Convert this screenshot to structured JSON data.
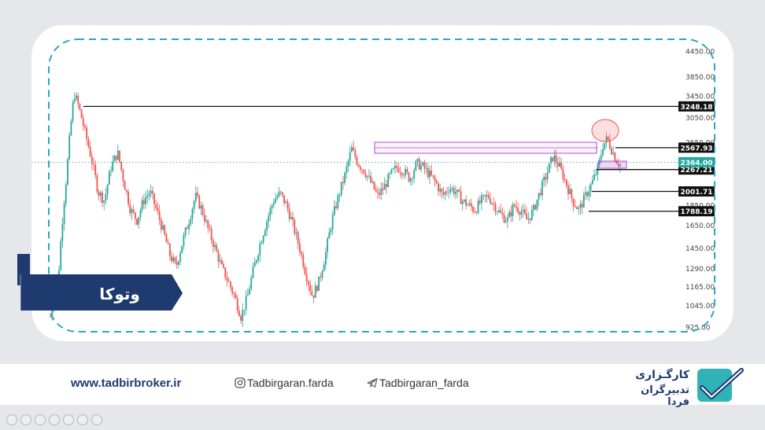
{
  "symbol": "وتوکا",
  "footer": {
    "website": "www.tadbirbroker.ir",
    "instagram": "Tadbirgaran.farda",
    "telegram": "Tadbirgaran_farda",
    "brand_line1": "کارگـزاری",
    "brand_line2": "تدبیرگران فردا"
  },
  "colors": {
    "up": "#26a69a",
    "down": "#ef5350",
    "brand_navy": "#1f3a6e",
    "dash_border": "#2aa7c1",
    "zone": "#b04fc9"
  },
  "chart_data": {
    "type": "candlestick",
    "y_ticks": [
      "4450.00",
      "3850.00",
      "3450.00",
      "3050.00",
      "2650.00",
      "2250.00",
      "1850.00",
      "1650.00",
      "1450.00",
      "1290.00",
      "1165.00",
      "1045.00",
      "925.00"
    ],
    "levels": [
      {
        "label": "3248.18",
        "value": 3248.18
      },
      {
        "label": "2567.93",
        "value": 2567.93
      },
      {
        "label": "2267.21",
        "value": 2267.21
      },
      {
        "label": "2001.71",
        "value": 2001.71
      },
      {
        "label": "1788.19",
        "value": 1788.19
      }
    ],
    "current_price": {
      "label": "2364.00",
      "value": 2364.0
    },
    "trend": [
      [
        0,
        980
      ],
      [
        8,
        1300
      ],
      [
        15,
        2200
      ],
      [
        22,
        3500
      ],
      [
        26,
        3250
      ],
      [
        32,
        2800
      ],
      [
        38,
        2400
      ],
      [
        44,
        2000
      ],
      [
        50,
        1900
      ],
      [
        56,
        2300
      ],
      [
        62,
        2500
      ],
      [
        68,
        2100
      ],
      [
        74,
        1800
      ],
      [
        80,
        1700
      ],
      [
        86,
        1900
      ],
      [
        92,
        2000
      ],
      [
        98,
        1800
      ],
      [
        104,
        1600
      ],
      [
        110,
        1400
      ],
      [
        116,
        1300
      ],
      [
        122,
        1500
      ],
      [
        128,
        1700
      ],
      [
        134,
        1950
      ],
      [
        140,
        1800
      ],
      [
        146,
        1600
      ],
      [
        152,
        1450
      ],
      [
        158,
        1300
      ],
      [
        164,
        1200
      ],
      [
        170,
        1100
      ],
      [
        176,
        980
      ],
      [
        182,
        1100
      ],
      [
        188,
        1300
      ],
      [
        194,
        1500
      ],
      [
        200,
        1700
      ],
      [
        206,
        1900
      ],
      [
        212,
        1980
      ],
      [
        218,
        1850
      ],
      [
        224,
        1650
      ],
      [
        230,
        1450
      ],
      [
        236,
        1250
      ],
      [
        242,
        1100
      ],
      [
        248,
        1200
      ],
      [
        254,
        1400
      ],
      [
        260,
        1700
      ],
      [
        266,
        1950
      ],
      [
        272,
        2200
      ],
      [
        278,
        2550
      ],
      [
        284,
        2350
      ],
      [
        290,
        2250
      ],
      [
        296,
        2100
      ],
      [
        302,
        1950
      ],
      [
        308,
        2050
      ],
      [
        314,
        2200
      ],
      [
        320,
        2300
      ],
      [
        326,
        2250
      ],
      [
        332,
        2150
      ],
      [
        338,
        2350
      ],
      [
        344,
        2300
      ],
      [
        350,
        2200
      ],
      [
        356,
        2100
      ],
      [
        362,
        1950
      ],
      [
        368,
        2050
      ],
      [
        374,
        2000
      ],
      [
        380,
        1900
      ],
      [
        386,
        1850
      ],
      [
        392,
        1800
      ],
      [
        398,
        1900
      ],
      [
        404,
        1950
      ],
      [
        410,
        1850
      ],
      [
        416,
        1750
      ],
      [
        422,
        1700
      ],
      [
        428,
        1850
      ],
      [
        434,
        1800
      ],
      [
        440,
        1700
      ],
      [
        446,
        1800
      ],
      [
        452,
        2000
      ],
      [
        458,
        2200
      ],
      [
        464,
        2450
      ],
      [
        470,
        2300
      ],
      [
        476,
        2100
      ],
      [
        482,
        1900
      ],
      [
        488,
        1800
      ],
      [
        494,
        1950
      ],
      [
        500,
        2100
      ],
      [
        506,
        2300
      ],
      [
        510,
        2600
      ],
      [
        514,
        2700
      ],
      [
        518,
        2550
      ],
      [
        522,
        2400
      ],
      [
        526,
        2330
      ]
    ]
  }
}
